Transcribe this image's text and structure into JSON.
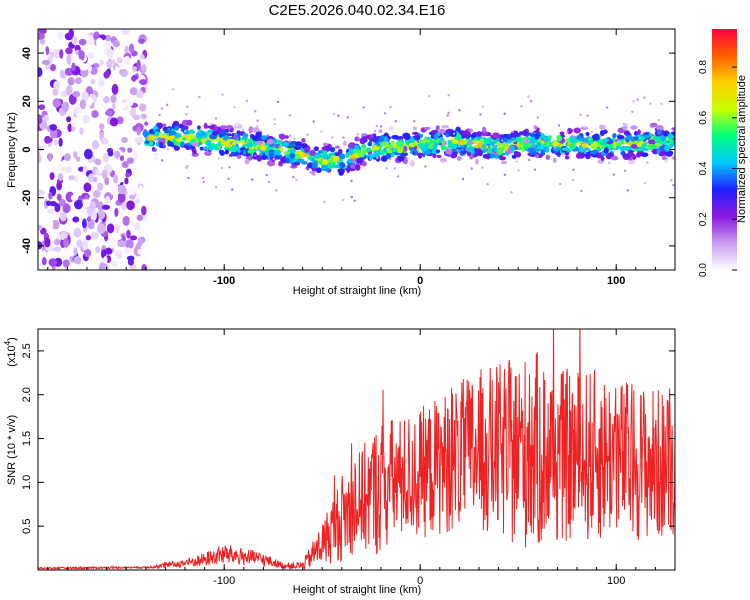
{
  "title": "C2E5.2026.040.02.34.E16",
  "chart_data": [
    {
      "type": "heatmap",
      "name": "spectrogram",
      "xlabel": "Height of straight line (km)",
      "ylabel": "Frequency (Hz)",
      "xlim": [
        -195,
        130
      ],
      "ylim": [
        -50,
        50
      ],
      "x_ticks": [
        -100,
        0,
        100
      ],
      "x_tick_labels": [
        "-100",
        "0",
        "100"
      ],
      "y_ticks": [
        -40,
        -20,
        0,
        20,
        40
      ],
      "y_tick_labels": [
        "-40",
        "-20",
        "0",
        "20",
        "40"
      ],
      "ridge": {
        "description": "dominant frequency ridge vs height",
        "x": [
          -140,
          -120,
          -100,
          -80,
          -60,
          -50,
          -40,
          -30,
          -20,
          -10,
          0,
          20,
          40,
          60,
          80,
          100,
          120,
          130
        ],
        "frequency": [
          5,
          5,
          3,
          1,
          -2,
          -4,
          -5,
          -1,
          1,
          1,
          2,
          3,
          1,
          3,
          2,
          2,
          3,
          3
        ]
      },
      "noise_region_x": [
        -195,
        -140
      ],
      "colorbar": {
        "label": "Normalized spectral amplitude",
        "range": [
          0.0,
          0.95
        ],
        "ticks": [
          0.0,
          0.2,
          0.4,
          0.6,
          0.8
        ],
        "tick_labels": [
          "0.0",
          "0.2",
          "0.4",
          "0.6",
          "0.8"
        ],
        "colors": [
          "#ffffff",
          "#c99cf0",
          "#8a18e0",
          "#2020ff",
          "#00c8ff",
          "#00ff80",
          "#c8ff00",
          "#ffd000",
          "#ff6000",
          "#ff0040"
        ]
      }
    },
    {
      "type": "line",
      "name": "snr",
      "xlabel": "Height of straight line (km)",
      "ylabel": "SNR (10 * v/v)",
      "y_scale_label": "(x10",
      "y_scale_exponent": "4",
      "y_scale_suffix": ")",
      "xlim": [
        -195,
        130
      ],
      "ylim": [
        0,
        2.75
      ],
      "x_ticks": [
        -100,
        0,
        100
      ],
      "x_tick_labels": [
        "-100",
        "0",
        "100"
      ],
      "y_ticks": [
        0.5,
        1.0,
        1.5,
        2.0,
        2.5
      ],
      "y_tick_labels": [
        "0.5",
        "1.0",
        "1.5",
        "2.0",
        "2.5"
      ],
      "color": "#ee2222",
      "envelope": {
        "x": [
          -195,
          -140,
          -130,
          -120,
          -110,
          -100,
          -90,
          -80,
          -70,
          -60,
          -50,
          -40,
          -30,
          -20,
          -10,
          0,
          10,
          20,
          30,
          40,
          50,
          60,
          70,
          80,
          90,
          100,
          110,
          120,
          130
        ],
        "mean": [
          0.02,
          0.03,
          0.05,
          0.08,
          0.12,
          0.18,
          0.15,
          0.12,
          0.05,
          0.05,
          0.3,
          0.6,
          0.8,
          0.95,
          1.05,
          1.1,
          1.2,
          1.3,
          1.35,
          1.35,
          1.35,
          1.35,
          1.3,
          1.3,
          1.3,
          1.3,
          1.25,
          1.2,
          1.2
        ],
        "amplitude": [
          0.01,
          0.01,
          0.03,
          0.05,
          0.08,
          0.12,
          0.1,
          0.08,
          0.03,
          0.05,
          0.25,
          0.5,
          0.6,
          0.8,
          0.7,
          0.75,
          0.8,
          0.85,
          0.95,
          1.0,
          1.1,
          1.15,
          1.0,
          1.0,
          1.0,
          0.9,
          0.9,
          0.9,
          0.8
        ]
      }
    }
  ]
}
